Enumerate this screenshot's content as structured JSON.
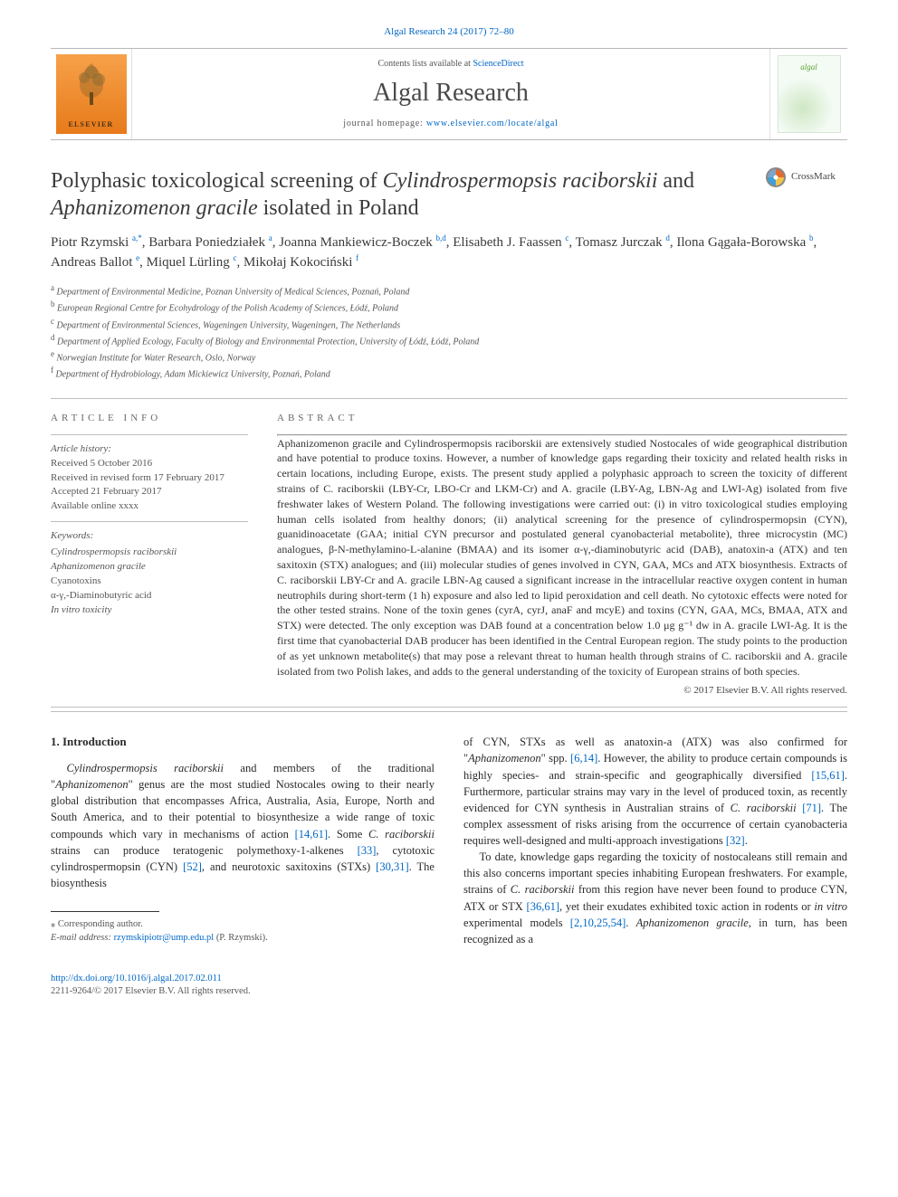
{
  "journalRef": "Algal Research 24 (2017) 72–80",
  "header": {
    "contentsPrefix": "Contents lists available at ",
    "contentsLink": "ScienceDirect",
    "journalName": "Algal Research",
    "homepagePrefix": "journal homepage: ",
    "homepageUrl": "www.elsevier.com/locate/algal",
    "publisherWord": "ELSEVIER",
    "coverTitle": "algal"
  },
  "crossmark": {
    "label": "CrossMark"
  },
  "title": {
    "pre": "Polyphasic toxicological screening of ",
    "ital1": "Cylindrospermopsis raciborskii",
    "mid": " and ",
    "ital2": "Aphanizomenon gracile",
    "post": " isolated in Poland"
  },
  "authors": "Piotr Rzymski <sup>a,*</sup>, Barbara Poniedziałek <sup>a</sup>, Joanna Mankiewicz-Boczek <sup>b,d</sup>, Elisabeth J. Faassen <sup>c</sup>, Tomasz Jurczak <sup>d</sup>, Ilona Gągała-Borowska <sup>b</sup>, Andreas Ballot <sup>e</sup>, Miquel Lürling <sup>c</sup>, Mikołaj Kokociński <sup>f</sup>",
  "affiliations": [
    "a Department of Environmental Medicine, Poznan University of Medical Sciences, Poznań, Poland",
    "b European Regional Centre for Ecohydrology of the Polish Academy of Sciences, Łódź, Poland",
    "c Department of Environmental Sciences, Wageningen University, Wageningen, The Netherlands",
    "d Department of Applied Ecology, Faculty of Biology and Environmental Protection, University of Łódź, Łódź, Poland",
    "e Norwegian Institute for Water Research, Oslo, Norway",
    "f Department of Hydrobiology, Adam Mickiewicz University, Poznań, Poland"
  ],
  "articleInfo": {
    "heading": "ARTICLE INFO",
    "historyLabel": "Article history:",
    "history": [
      "Received 5 October 2016",
      "Received in revised form 17 February 2017",
      "Accepted 21 February 2017",
      "Available online xxxx"
    ],
    "keywordsLabel": "Keywords:",
    "keywords": [
      "Cylindrospermopsis raciborskii",
      "Aphanizomenon gracile",
      "Cyanotoxins",
      "α-γ,-Diaminobutyric acid",
      "In vitro toxicity"
    ]
  },
  "abstract": {
    "heading": "ABSTRACT",
    "text": "Aphanizomenon gracile and Cylindrospermopsis raciborskii are extensively studied Nostocales of wide geographical distribution and have potential to produce toxins. However, a number of knowledge gaps regarding their toxicity and related health risks in certain locations, including Europe, exists. The present study applied a polyphasic approach to screen the toxicity of different strains of C. raciborskii (LBY-Cr, LBO-Cr and LKM-Cr) and A. gracile (LBY-Ag, LBN-Ag and LWI-Ag) isolated from five freshwater lakes of Western Poland. The following investigations were carried out: (i) in vitro toxicological studies employing human cells isolated from healthy donors; (ii) analytical screening for the presence of cylindrospermopsin (CYN), guanidinoacetate (GAA; initial CYN precursor and postulated general cyanobacterial metabolite), three microcystin (MC) analogues, β-N-methylamino-L-alanine (BMAA) and its isomer α-γ,-diaminobutyric acid (DAB), anatoxin-a (ATX) and ten saxitoxin (STX) analogues; and (iii) molecular studies of genes involved in CYN, GAA, MCs and ATX biosynthesis. Extracts of C. raciborskii LBY-Cr and A. gracile LBN-Ag caused a significant increase in the intracellular reactive oxygen content in human neutrophils during short-term (1 h) exposure and also led to lipid peroxidation and cell death. No cytotoxic effects were noted for the other tested strains. None of the toxin genes (cyrA, cyrJ, anaF and mcyE) and toxins (CYN, GAA, MCs, BMAA, ATX and STX) were detected. The only exception was DAB found at a concentration below 1.0 μg g⁻¹ dw in A. gracile LWI-Ag. It is the first time that cyanobacterial DAB producer has been identified in the Central European region. The study points to the production of as yet unknown metabolite(s) that may pose a relevant threat to human health through strains of C. raciborskii and A. gracile isolated from two Polish lakes, and adds to the general understanding of the toxicity of European strains of both species.",
    "copyright": "© 2017 Elsevier B.V. All rights reserved."
  },
  "intro": {
    "heading": "1. Introduction",
    "p1a": "Cylindrospermopsis raciborskii",
    "p1b": " and members of the traditional \"",
    "p1c": "Aphanizomenon",
    "p1d": "\" genus are the most studied Nostocales owing to their nearly global distribution that encompasses Africa, Australia, Asia, Europe, North and South America, and to their potential to biosynthesize a wide range of toxic compounds which vary in mechanisms of action ",
    "c1": "[14,61]",
    "p1e": ". Some ",
    "p1f": "C. raciborskii",
    "p1g": " strains can produce teratogenic polymethoxy-1-alkenes ",
    "c2": "[33]",
    "p1h": ", cytotoxic cylindrospermopsin (CYN) ",
    "c3": "[52]",
    "p1i": ", and neurotoxic saxitoxins (STXs) ",
    "c4": "[30,31]",
    "p1j": ". The biosynthesis",
    "p2a": "of CYN, STXs as well as anatoxin-a (ATX) was also confirmed for \"",
    "p2b": "Aphanizomenon",
    "p2c": "\" spp. ",
    "c5": "[6,14]",
    "p2d": ". However, the ability to produce certain compounds is highly species- and strain-specific and geographically diversified ",
    "c6": "[15,61]",
    "p2e": ". Furthermore, particular strains may vary in the level of produced toxin, as recently evidenced for CYN synthesis in Australian strains of ",
    "p2f": "C. raciborskii",
    "p2g": " ",
    "c7": "[71]",
    "p2h": ". The complex assessment of risks arising from the occurrence of certain cyanobacteria requires well-designed and multi-approach investigations ",
    "c8": "[32]",
    "p2i": ".",
    "p3a": "To date, knowledge gaps regarding the toxicity of nostocaleans still remain and this also concerns important species inhabiting European freshwaters. For example, strains of ",
    "p3b": "C. raciborskii",
    "p3c": " from this region have never been found to produce CYN, ATX or STX ",
    "c9": "[36,61]",
    "p3d": ", yet their exudates exhibited toxic action in rodents or ",
    "p3e": "in vitro",
    "p3f": " experimental models ",
    "c10": "[2,10,25,54]",
    "p3g": ". ",
    "p3h": "Aphanizomenon gracile",
    "p3i": ", in turn, has been recognized as a"
  },
  "footnote": {
    "corr": "⁎ Corresponding author.",
    "emailLabel": "E-mail address: ",
    "email": "rzymskipiotr@ump.edu.pl",
    "emailSuffix": " (P. Rzymski)."
  },
  "footer": {
    "doi": "http://dx.doi.org/10.1016/j.algal.2017.02.011",
    "issn": "2211-9264/© 2017 Elsevier B.V. All rights reserved."
  },
  "colors": {
    "link": "#0067c5",
    "text": "#2b2b2b",
    "muted": "#555555",
    "rule": "#bfbfbf"
  },
  "typography": {
    "body_fontsize": 13,
    "title_fontsize": 24,
    "journal_fontsize": 28,
    "abstract_fontsize": 12,
    "small_fontsize": 11
  }
}
